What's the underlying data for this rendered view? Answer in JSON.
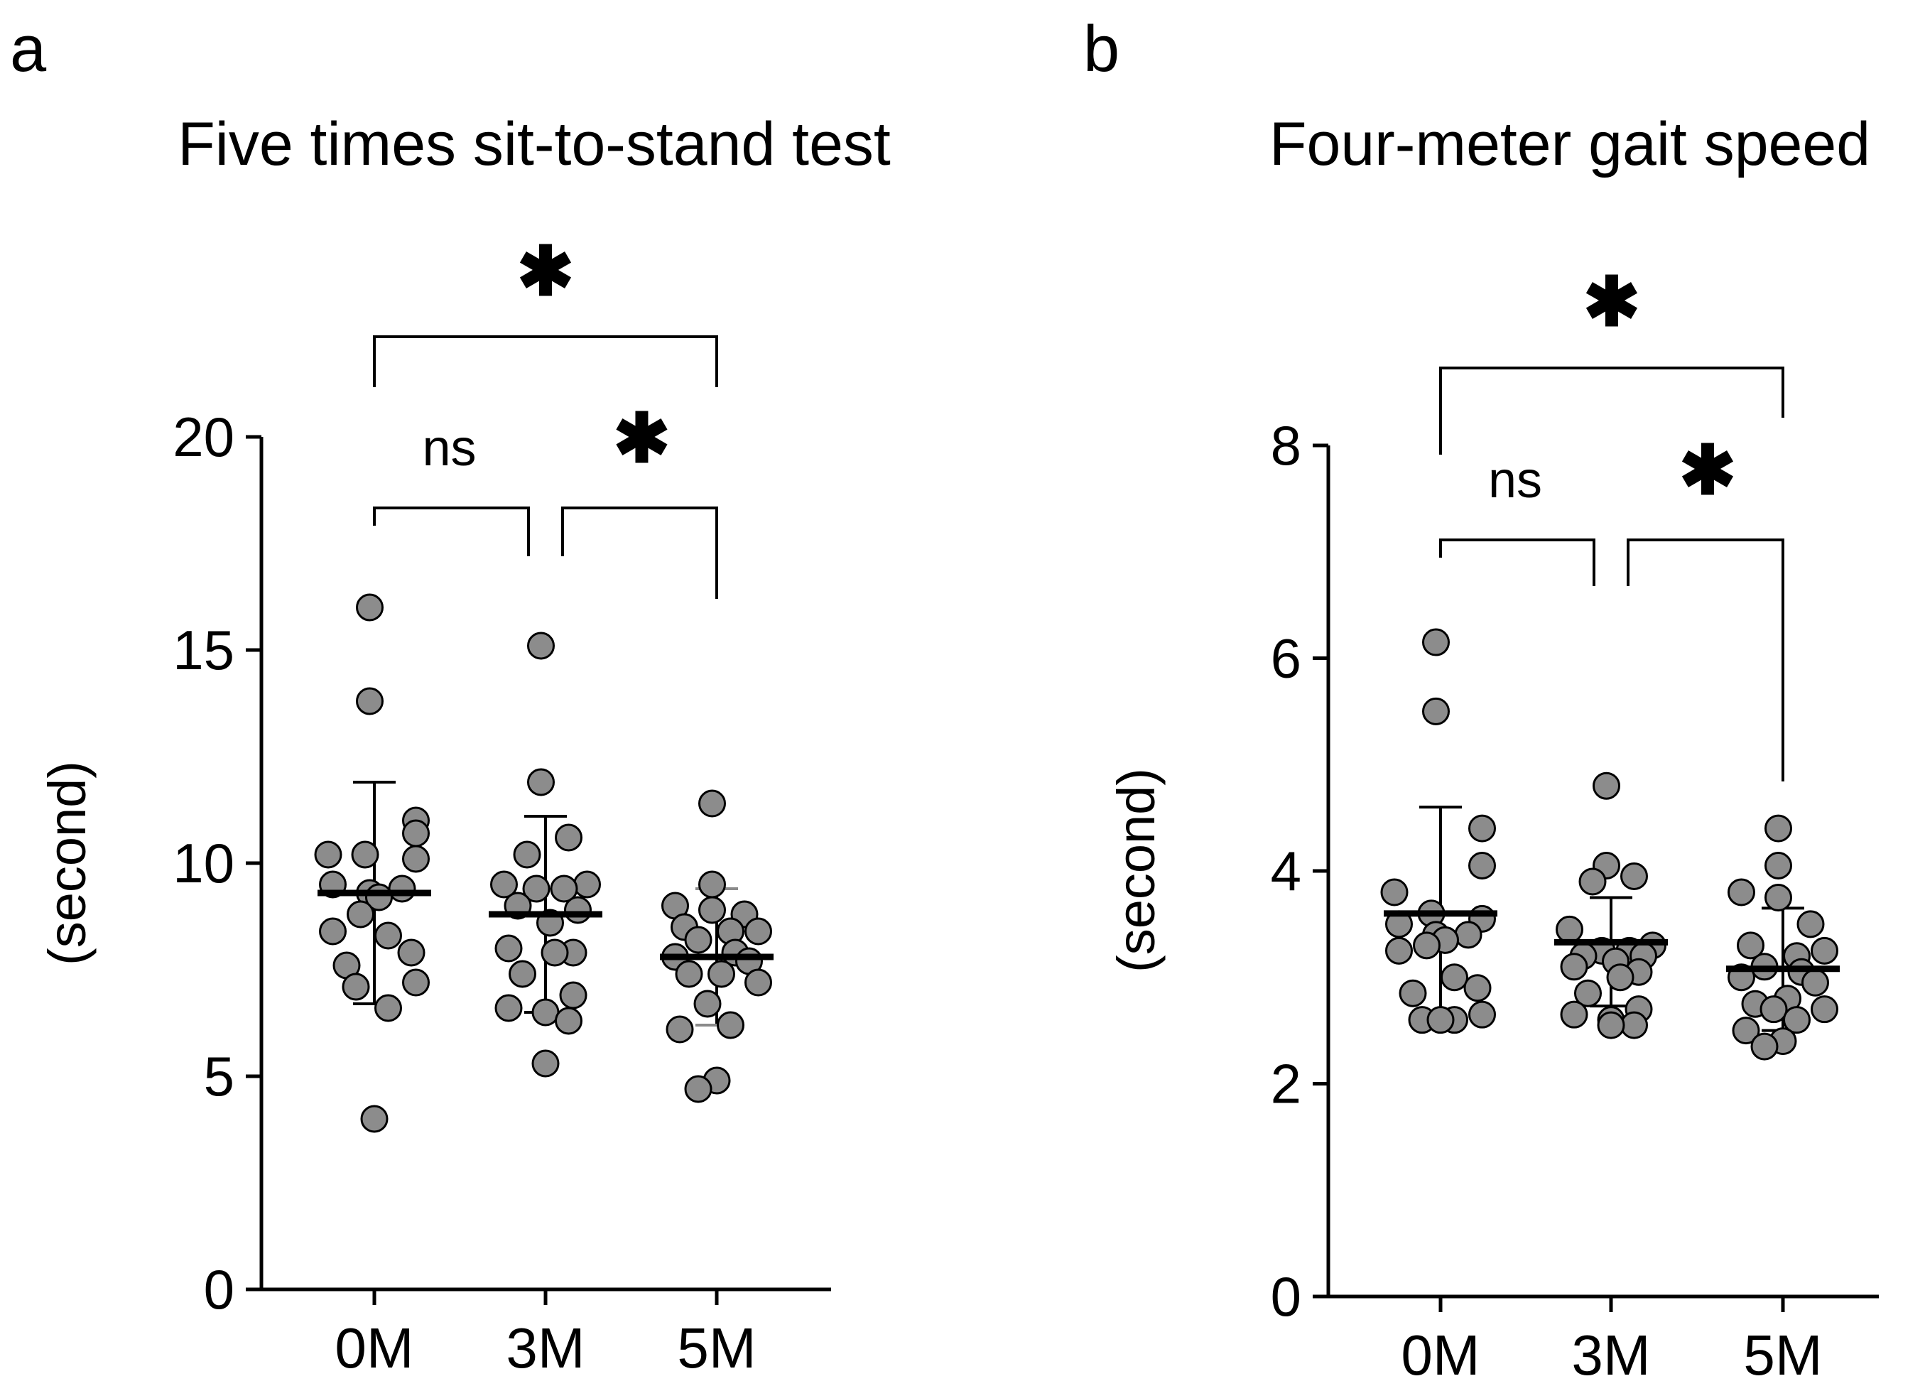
{
  "chart_data": [
    {
      "panel_label": "a",
      "type": "scatter",
      "title": "Five times sit-to-stand test",
      "ylabel": "(second)",
      "xlabel": "",
      "ylim": [
        0,
        20
      ],
      "yticks": [
        0,
        5,
        10,
        15,
        20
      ],
      "categories": [
        "0M",
        "3M",
        "5M"
      ],
      "groups": [
        {
          "name": "0M",
          "mean": 9.3,
          "sd_low": 6.7,
          "sd_high": 11.9,
          "points": [
            16.0,
            13.8,
            11.0,
            10.7,
            10.2,
            10.2,
            10.1,
            9.5,
            9.4,
            9.3,
            9.2,
            8.8,
            8.4,
            8.3,
            7.9,
            7.6,
            7.2,
            7.1,
            6.6,
            4.0
          ]
        },
        {
          "name": "3M",
          "mean": 8.8,
          "sd_low": 6.5,
          "sd_high": 11.1,
          "points": [
            15.1,
            11.9,
            10.6,
            10.2,
            9.5,
            9.5,
            9.4,
            9.4,
            9.0,
            8.9,
            8.6,
            8.0,
            7.9,
            7.9,
            7.4,
            6.9,
            6.6,
            6.5,
            6.3,
            5.3
          ]
        },
        {
          "name": "5M",
          "mean": 7.8,
          "sd_low": 6.2,
          "sd_high": 9.4,
          "points": [
            11.4,
            9.5,
            9.0,
            8.9,
            8.8,
            8.5,
            8.4,
            8.4,
            8.2,
            7.9,
            7.8,
            7.7,
            7.4,
            7.4,
            7.2,
            6.7,
            6.2,
            6.1,
            4.9,
            4.7
          ]
        }
      ],
      "comparisons": [
        {
          "from": "0M",
          "to": "3M",
          "label": "ns"
        },
        {
          "from": "3M",
          "to": "5M",
          "label": "✱"
        },
        {
          "from": "0M",
          "to": "5M",
          "label": "✱"
        }
      ]
    },
    {
      "panel_label": "b",
      "type": "scatter",
      "title": "Four-meter gait speed",
      "ylabel": "(second)",
      "xlabel": "",
      "ylim": [
        0,
        8
      ],
      "yticks": [
        0,
        2,
        4,
        6,
        8
      ],
      "categories": [
        "0M",
        "3M",
        "5M"
      ],
      "groups": [
        {
          "name": "0M",
          "mean": 3.6,
          "sd_low": 2.6,
          "sd_high": 4.6,
          "points": [
            6.15,
            5.5,
            4.4,
            4.05,
            3.8,
            3.6,
            3.55,
            3.5,
            3.4,
            3.4,
            3.35,
            3.3,
            3.25,
            3.0,
            2.9,
            2.85,
            2.65,
            2.6,
            2.6,
            2.6
          ]
        },
        {
          "name": "3M",
          "mean": 3.33,
          "sd_low": 2.73,
          "sd_high": 3.75,
          "points": [
            4.8,
            4.05,
            3.95,
            3.9,
            3.45,
            3.3,
            3.25,
            3.25,
            3.2,
            3.2,
            3.15,
            3.1,
            3.05,
            3.0,
            2.85,
            2.7,
            2.65,
            2.6,
            2.55,
            2.55
          ]
        },
        {
          "name": "5M",
          "mean": 3.08,
          "sd_low": 2.5,
          "sd_high": 3.65,
          "points": [
            4.4,
            4.05,
            3.8,
            3.75,
            3.5,
            3.3,
            3.25,
            3.2,
            3.1,
            3.05,
            3.0,
            2.95,
            2.8,
            2.75,
            2.7,
            2.7,
            2.6,
            2.5,
            2.4,
            2.35
          ]
        }
      ],
      "comparisons": [
        {
          "from": "0M",
          "to": "3M",
          "label": "ns"
        },
        {
          "from": "3M",
          "to": "5M",
          "label": "✱"
        },
        {
          "from": "0M",
          "to": "5M",
          "label": "✱"
        }
      ]
    }
  ]
}
